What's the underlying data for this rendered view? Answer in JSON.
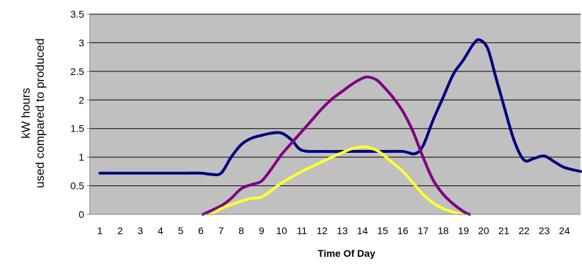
{
  "chart_data": {
    "type": "line",
    "title": "",
    "xlabel": "Time Of Day",
    "ylabel_lines": [
      "kW hours",
      "used compared to produced"
    ],
    "x_ticks": [
      1,
      2,
      3,
      4,
      5,
      6,
      7,
      8,
      9,
      10,
      11,
      12,
      13,
      14,
      15,
      16,
      17,
      18,
      19,
      20,
      21,
      22,
      23,
      24
    ],
    "y_ticks": [
      "0",
      "0.5",
      "1",
      "1.5",
      "2",
      "2.5",
      "3",
      "3.5"
    ],
    "xlim": [
      0.5,
      24.8
    ],
    "ylim": [
      0,
      3.5
    ],
    "grid": true,
    "plot_background": "#c0c0c0",
    "series": [
      {
        "color": "#000080",
        "points": [
          [
            1,
            0.72
          ],
          [
            2,
            0.72
          ],
          [
            3,
            0.72
          ],
          [
            4,
            0.72
          ],
          [
            5,
            0.72
          ],
          [
            6,
            0.72
          ],
          [
            6.5,
            0.7
          ],
          [
            7,
            0.72
          ],
          [
            7.5,
            1.0
          ],
          [
            8,
            1.22
          ],
          [
            8.5,
            1.33
          ],
          [
            9,
            1.38
          ],
          [
            9.5,
            1.42
          ],
          [
            10,
            1.42
          ],
          [
            10.5,
            1.3
          ],
          [
            11,
            1.12
          ],
          [
            12,
            1.1
          ],
          [
            13,
            1.1
          ],
          [
            14,
            1.1
          ],
          [
            15,
            1.1
          ],
          [
            16,
            1.1
          ],
          [
            16.6,
            1.06
          ],
          [
            17,
            1.2
          ],
          [
            17.5,
            1.65
          ],
          [
            18,
            2.05
          ],
          [
            18.5,
            2.45
          ],
          [
            19,
            2.7
          ],
          [
            19.5,
            2.98
          ],
          [
            19.8,
            3.05
          ],
          [
            20.2,
            2.9
          ],
          [
            20.6,
            2.4
          ],
          [
            21,
            1.9
          ],
          [
            21.5,
            1.3
          ],
          [
            22,
            0.95
          ],
          [
            22.5,
            0.98
          ],
          [
            23,
            1.02
          ],
          [
            23.5,
            0.92
          ],
          [
            24,
            0.82
          ],
          [
            24.8,
            0.75
          ]
        ]
      },
      {
        "color": "#800080",
        "points": [
          [
            6.1,
            0.0
          ],
          [
            7,
            0.15
          ],
          [
            7.5,
            0.28
          ],
          [
            8,
            0.45
          ],
          [
            8.5,
            0.52
          ],
          [
            9,
            0.58
          ],
          [
            9.5,
            0.8
          ],
          [
            10,
            1.05
          ],
          [
            10.5,
            1.25
          ],
          [
            11,
            1.45
          ],
          [
            11.5,
            1.65
          ],
          [
            12,
            1.85
          ],
          [
            12.5,
            2.02
          ],
          [
            13,
            2.15
          ],
          [
            13.5,
            2.28
          ],
          [
            14,
            2.38
          ],
          [
            14.3,
            2.4
          ],
          [
            14.7,
            2.35
          ],
          [
            15,
            2.25
          ],
          [
            15.5,
            2.05
          ],
          [
            16,
            1.8
          ],
          [
            16.5,
            1.45
          ],
          [
            17,
            1.0
          ],
          [
            17.5,
            0.6
          ],
          [
            18,
            0.35
          ],
          [
            18.5,
            0.18
          ],
          [
            19,
            0.05
          ],
          [
            19.3,
            0.0
          ]
        ]
      },
      {
        "color": "#ffff33",
        "points": [
          [
            6.5,
            0.0
          ],
          [
            7,
            0.1
          ],
          [
            7.5,
            0.17
          ],
          [
            8,
            0.23
          ],
          [
            8.5,
            0.28
          ],
          [
            9,
            0.3
          ],
          [
            9.5,
            0.42
          ],
          [
            10,
            0.55
          ],
          [
            11,
            0.75
          ],
          [
            12,
            0.92
          ],
          [
            13,
            1.08
          ],
          [
            13.5,
            1.15
          ],
          [
            14,
            1.18
          ],
          [
            14.3,
            1.17
          ],
          [
            14.7,
            1.12
          ],
          [
            15,
            1.05
          ],
          [
            15.5,
            0.9
          ],
          [
            16,
            0.75
          ],
          [
            16.5,
            0.55
          ],
          [
            17,
            0.35
          ],
          [
            17.5,
            0.2
          ],
          [
            18,
            0.1
          ],
          [
            18.5,
            0.04
          ],
          [
            18.9,
            0.0
          ]
        ]
      }
    ]
  }
}
